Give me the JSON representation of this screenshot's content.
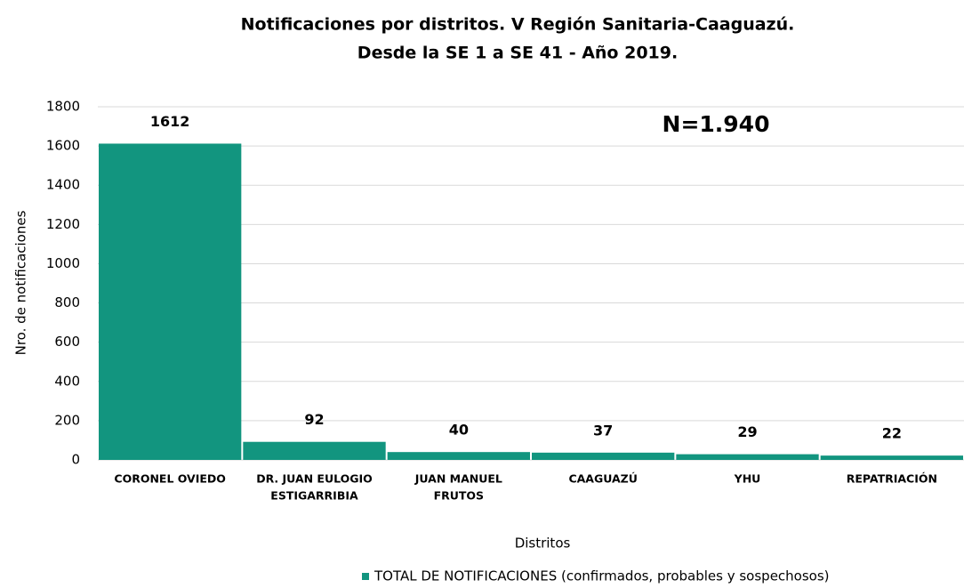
{
  "chart_data": {
    "type": "bar",
    "title": [
      "Notificaciones por distritos. V Región Sanitaria-Caaguazú.",
      "Desde la SE 1 a SE 41 - Año 2019."
    ],
    "annotation": "N=1.940",
    "x_label": "Distritos",
    "y_label": "Nro. de notificaciones",
    "categories": [
      [
        "CORONEL OVIEDO"
      ],
      [
        "DR. JUAN EULOGIO",
        "ESTIGARRIBIA"
      ],
      [
        "JUAN MANUEL",
        "FRUTOS"
      ],
      [
        "CAAGUAZÚ"
      ],
      [
        "YHU"
      ],
      [
        "REPATRIACIÓN"
      ]
    ],
    "series": [
      {
        "name": "TOTAL DE NOTIFICACIONES (confirmados, probables y sospechosos)",
        "color": "#12957f",
        "values": [
          1612,
          92,
          40,
          37,
          29,
          22
        ]
      }
    ],
    "ylim": [
      0,
      1800
    ],
    "yticks": [
      0,
      200,
      400,
      600,
      800,
      1000,
      1200,
      1400,
      1600,
      1800
    ],
    "grid": true
  }
}
